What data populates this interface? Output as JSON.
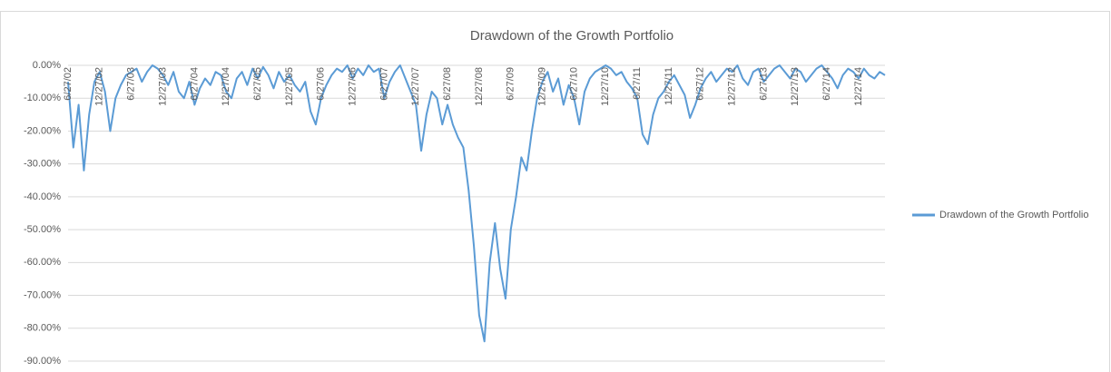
{
  "chart_data": {
    "type": "line",
    "title": "Drawdown of the Growth Portfolio",
    "categories": [
      "6/27/02",
      null,
      null,
      null,
      null,
      null,
      "12/27/02",
      null,
      null,
      null,
      null,
      null,
      "6/27/03",
      null,
      null,
      null,
      null,
      null,
      "12/27/03",
      null,
      null,
      null,
      null,
      null,
      "6/27/04",
      null,
      null,
      null,
      null,
      null,
      "12/27/04",
      null,
      null,
      null,
      null,
      null,
      "6/27/05",
      null,
      null,
      null,
      null,
      null,
      "12/27/05",
      null,
      null,
      null,
      null,
      null,
      "6/27/06",
      null,
      null,
      null,
      null,
      null,
      "12/27/06",
      null,
      null,
      null,
      null,
      null,
      "6/27/07",
      null,
      null,
      null,
      null,
      null,
      "12/27/07",
      null,
      null,
      null,
      null,
      null,
      "6/27/08",
      null,
      null,
      null,
      null,
      null,
      "12/27/08",
      null,
      null,
      null,
      null,
      null,
      "6/27/09",
      null,
      null,
      null,
      null,
      null,
      "12/27/09",
      null,
      null,
      null,
      null,
      null,
      "6/27/10",
      null,
      null,
      null,
      null,
      null,
      "12/27/10",
      null,
      null,
      null,
      null,
      null,
      "6/27/11",
      null,
      null,
      null,
      null,
      null,
      "12/27/11",
      null,
      null,
      null,
      null,
      null,
      "6/27/12",
      null,
      null,
      null,
      null,
      null,
      "12/27/12",
      null,
      null,
      null,
      null,
      null,
      "6/27/13",
      null,
      null,
      null,
      null,
      null,
      "12/27/13",
      null,
      null,
      null,
      null,
      null,
      "6/27/14",
      null,
      null,
      null,
      null,
      null,
      "12/27/14",
      null,
      null,
      null,
      null,
      null
    ],
    "series": [
      {
        "name": "Drawdown of the Growth Portfolio",
        "color": "#5b9bd5",
        "values": [
          -5,
          -25,
          -12,
          -32,
          -15,
          -5,
          -2,
          -8,
          -20,
          -10,
          -6,
          -3,
          -2,
          -1,
          -5,
          -2,
          0,
          -1,
          -3,
          -6,
          -2,
          -8,
          -10,
          -5,
          -12,
          -7,
          -4,
          -6,
          -2,
          -3,
          -8,
          -10,
          -4,
          -2,
          -6,
          -1,
          -4,
          -0.5,
          -3,
          -7,
          -2,
          -5,
          -3,
          -6,
          -8,
          -5,
          -14,
          -18,
          -10,
          -6,
          -3,
          -1,
          -2,
          0,
          -4,
          -1,
          -3,
          0,
          -2,
          -1,
          -10,
          -5,
          -2,
          0,
          -4,
          -8,
          -12,
          -26,
          -15,
          -8,
          -10,
          -18,
          -12,
          -18,
          -22,
          -25,
          -38,
          -55,
          -76,
          -84,
          -60,
          -48,
          -62,
          -71,
          -50,
          -40,
          -28,
          -32,
          -20,
          -10,
          -5,
          -2,
          -8,
          -4,
          -12,
          -6,
          -10,
          -18,
          -8,
          -4,
          -2,
          -1,
          0,
          -1,
          -3,
          -2,
          -5,
          -7,
          -10,
          -21,
          -24,
          -15,
          -10,
          -8,
          -5,
          -3,
          -6,
          -9,
          -16,
          -12,
          -7,
          -4,
          -2,
          -5,
          -3,
          -1,
          -2,
          0,
          -4,
          -6,
          -2,
          -1,
          -5,
          -3,
          -1,
          0,
          -2,
          -4,
          -1,
          -2,
          -5,
          -3,
          -1,
          0,
          -2,
          -4,
          -7,
          -3,
          -1,
          -2,
          -4,
          -1,
          -3,
          -4,
          -2,
          -3
        ]
      }
    ],
    "ylim": [
      -90,
      0
    ],
    "yticks": [
      {
        "value": 0,
        "label": "0.00%"
      },
      {
        "value": -10,
        "label": "-10.00%"
      },
      {
        "value": -20,
        "label": "-20.00%"
      },
      {
        "value": -30,
        "label": "-30.00%"
      },
      {
        "value": -40,
        "label": "-40.00%"
      },
      {
        "value": -50,
        "label": "-50.00%"
      },
      {
        "value": -60,
        "label": "-60.00%"
      },
      {
        "value": -70,
        "label": "-70.00%"
      },
      {
        "value": -80,
        "label": "-80.00%"
      },
      {
        "value": -90,
        "label": "-90.00%"
      }
    ],
    "grid": true,
    "legend": "right"
  }
}
